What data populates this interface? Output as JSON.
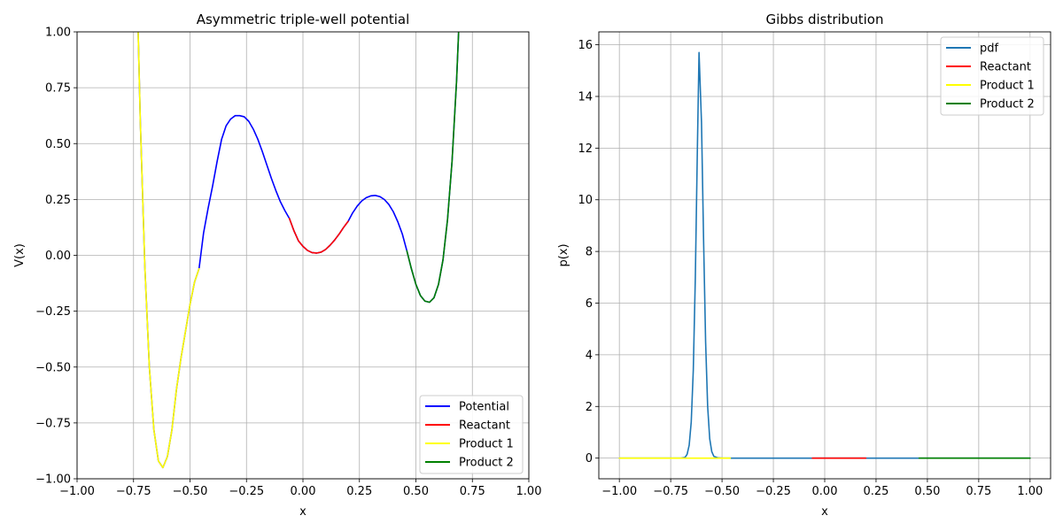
{
  "chart_data": [
    {
      "type": "line",
      "title": "Asymmetric triple-well potential",
      "xlabel": "x",
      "ylabel": "V(x)",
      "xlim": [
        -1.0,
        1.0
      ],
      "ylim": [
        -1.0,
        1.0
      ],
      "xticks": [
        -1.0,
        -0.75,
        -0.5,
        -0.25,
        0.0,
        0.25,
        0.5,
        0.75,
        1.0
      ],
      "xtick_labels": [
        "−1.00",
        "−0.75",
        "−0.50",
        "−0.25",
        "0.00",
        "0.25",
        "0.50",
        "0.75",
        "1.00"
      ],
      "yticks": [
        -1.0,
        -0.75,
        -0.5,
        -0.25,
        0.0,
        0.25,
        0.5,
        0.75,
        1.0
      ],
      "ytick_labels": [
        "−1.00",
        "−0.75",
        "−0.50",
        "−0.25",
        "0.00",
        "0.25",
        "0.50",
        "0.75",
        "1.00"
      ],
      "grid": true,
      "legend_position": "lower-right",
      "series": [
        {
          "name": "Potential",
          "color": "#0000ff",
          "points": [
            [
              -0.73,
              1.02
            ],
            [
              -0.72,
              0.6
            ],
            [
              -0.7,
              -0.05
            ],
            [
              -0.68,
              -0.5
            ],
            [
              -0.66,
              -0.78
            ],
            [
              -0.64,
              -0.92
            ],
            [
              -0.62,
              -0.95
            ],
            [
              -0.6,
              -0.9
            ],
            [
              -0.58,
              -0.78
            ],
            [
              -0.56,
              -0.6
            ],
            [
              -0.54,
              -0.46
            ],
            [
              -0.52,
              -0.34
            ],
            [
              -0.5,
              -0.22
            ],
            [
              -0.48,
              -0.12
            ],
            [
              -0.46,
              -0.06
            ],
            [
              -0.45,
              0.02
            ],
            [
              -0.44,
              0.1
            ],
            [
              -0.42,
              0.21
            ],
            [
              -0.4,
              0.31
            ],
            [
              -0.38,
              0.42
            ],
            [
              -0.36,
              0.52
            ],
            [
              -0.34,
              0.58
            ],
            [
              -0.32,
              0.61
            ],
            [
              -0.3,
              0.625
            ],
            [
              -0.28,
              0.625
            ],
            [
              -0.26,
              0.62
            ],
            [
              -0.24,
              0.6
            ],
            [
              -0.22,
              0.565
            ],
            [
              -0.2,
              0.52
            ],
            [
              -0.18,
              0.465
            ],
            [
              -0.16,
              0.405
            ],
            [
              -0.14,
              0.345
            ],
            [
              -0.12,
              0.29
            ],
            [
              -0.1,
              0.24
            ],
            [
              -0.08,
              0.2
            ],
            [
              -0.06,
              0.165
            ],
            [
              -0.04,
              0.11
            ],
            [
              -0.02,
              0.065
            ],
            [
              0.0,
              0.04
            ],
            [
              0.02,
              0.022
            ],
            [
              0.04,
              0.012
            ],
            [
              0.06,
              0.01
            ],
            [
              0.08,
              0.014
            ],
            [
              0.1,
              0.026
            ],
            [
              0.12,
              0.045
            ],
            [
              0.14,
              0.068
            ],
            [
              0.16,
              0.095
            ],
            [
              0.18,
              0.125
            ],
            [
              0.2,
              0.152
            ],
            [
              0.22,
              0.19
            ],
            [
              0.24,
              0.22
            ],
            [
              0.26,
              0.243
            ],
            [
              0.28,
              0.258
            ],
            [
              0.3,
              0.266
            ],
            [
              0.32,
              0.268
            ],
            [
              0.34,
              0.263
            ],
            [
              0.36,
              0.25
            ],
            [
              0.38,
              0.228
            ],
            [
              0.4,
              0.195
            ],
            [
              0.42,
              0.15
            ],
            [
              0.44,
              0.095
            ],
            [
              0.46,
              0.02
            ],
            [
              0.48,
              -0.06
            ],
            [
              0.5,
              -0.13
            ],
            [
              0.52,
              -0.18
            ],
            [
              0.54,
              -0.205
            ],
            [
              0.56,
              -0.21
            ],
            [
              0.58,
              -0.19
            ],
            [
              0.6,
              -0.13
            ],
            [
              0.62,
              -0.02
            ],
            [
              0.64,
              0.16
            ],
            [
              0.66,
              0.42
            ],
            [
              0.68,
              0.78
            ],
            [
              0.69,
              1.02
            ]
          ]
        },
        {
          "name": "Reactant",
          "color": "#ff0000",
          "points": [
            [
              -0.06,
              0.165
            ],
            [
              -0.04,
              0.11
            ],
            [
              -0.02,
              0.065
            ],
            [
              0.0,
              0.04
            ],
            [
              0.02,
              0.022
            ],
            [
              0.04,
              0.012
            ],
            [
              0.06,
              0.01
            ],
            [
              0.08,
              0.014
            ],
            [
              0.1,
              0.026
            ],
            [
              0.12,
              0.045
            ],
            [
              0.14,
              0.068
            ],
            [
              0.16,
              0.095
            ],
            [
              0.18,
              0.125
            ],
            [
              0.2,
              0.152
            ]
          ]
        },
        {
          "name": "Product 1",
          "color": "#ffff00",
          "points": [
            [
              -0.73,
              1.02
            ],
            [
              -0.72,
              0.6
            ],
            [
              -0.7,
              -0.05
            ],
            [
              -0.68,
              -0.5
            ],
            [
              -0.66,
              -0.78
            ],
            [
              -0.64,
              -0.92
            ],
            [
              -0.62,
              -0.95
            ],
            [
              -0.6,
              -0.9
            ],
            [
              -0.58,
              -0.78
            ],
            [
              -0.56,
              -0.6
            ],
            [
              -0.54,
              -0.46
            ],
            [
              -0.52,
              -0.34
            ],
            [
              -0.5,
              -0.22
            ],
            [
              -0.48,
              -0.12
            ],
            [
              -0.46,
              -0.06
            ]
          ]
        },
        {
          "name": "Product 2",
          "color": "#008000",
          "points": [
            [
              0.46,
              0.02
            ],
            [
              0.48,
              -0.06
            ],
            [
              0.5,
              -0.13
            ],
            [
              0.52,
              -0.18
            ],
            [
              0.54,
              -0.205
            ],
            [
              0.56,
              -0.21
            ],
            [
              0.58,
              -0.19
            ],
            [
              0.6,
              -0.13
            ],
            [
              0.62,
              -0.02
            ],
            [
              0.64,
              0.16
            ],
            [
              0.66,
              0.42
            ],
            [
              0.68,
              0.78
            ],
            [
              0.69,
              1.02
            ]
          ]
        }
      ]
    },
    {
      "type": "line",
      "title": "Gibbs distribution",
      "xlabel": "x",
      "ylabel": "p(x)",
      "xlim": [
        -1.1,
        1.1
      ],
      "ylim": [
        -0.8,
        16.5
      ],
      "xticks": [
        -1.0,
        -0.75,
        -0.5,
        -0.25,
        0.0,
        0.25,
        0.5,
        0.75,
        1.0
      ],
      "xtick_labels": [
        "−1.00",
        "−0.75",
        "−0.50",
        "−0.25",
        "0.00",
        "0.25",
        "0.50",
        "0.75",
        "1.00"
      ],
      "yticks": [
        0,
        2,
        4,
        6,
        8,
        10,
        12,
        14,
        16
      ],
      "ytick_labels": [
        "0",
        "2",
        "4",
        "6",
        "8",
        "10",
        "12",
        "14",
        "16"
      ],
      "grid": true,
      "legend_position": "upper-right",
      "series": [
        {
          "name": "pdf",
          "color": "#1f77b4",
          "points": [
            [
              -1.0,
              0.0
            ],
            [
              -0.7,
              0.0
            ],
            [
              -0.68,
              0.03
            ],
            [
              -0.67,
              0.15
            ],
            [
              -0.66,
              0.5
            ],
            [
              -0.65,
              1.4
            ],
            [
              -0.64,
              3.4
            ],
            [
              -0.63,
              7.0
            ],
            [
              -0.62,
              12.0
            ],
            [
              -0.612,
              15.7
            ],
            [
              -0.6,
              13.0
            ],
            [
              -0.59,
              8.5
            ],
            [
              -0.58,
              4.5
            ],
            [
              -0.57,
              2.0
            ],
            [
              -0.56,
              0.75
            ],
            [
              -0.55,
              0.25
            ],
            [
              -0.54,
              0.07
            ],
            [
              -0.52,
              0.01
            ],
            [
              -0.5,
              0.0
            ],
            [
              1.0,
              0.0
            ]
          ]
        },
        {
          "name": "Reactant",
          "color": "#ff0000",
          "points": [
            [
              -0.06,
              0.0
            ],
            [
              0.2,
              0.0
            ]
          ]
        },
        {
          "name": "Product 1",
          "color": "#ffff00",
          "points": [
            [
              -1.0,
              0.0
            ],
            [
              -0.46,
              0.0
            ]
          ]
        },
        {
          "name": "Product 2",
          "color": "#008000",
          "points": [
            [
              0.46,
              0.0
            ],
            [
              1.0,
              0.0
            ]
          ]
        }
      ]
    }
  ]
}
